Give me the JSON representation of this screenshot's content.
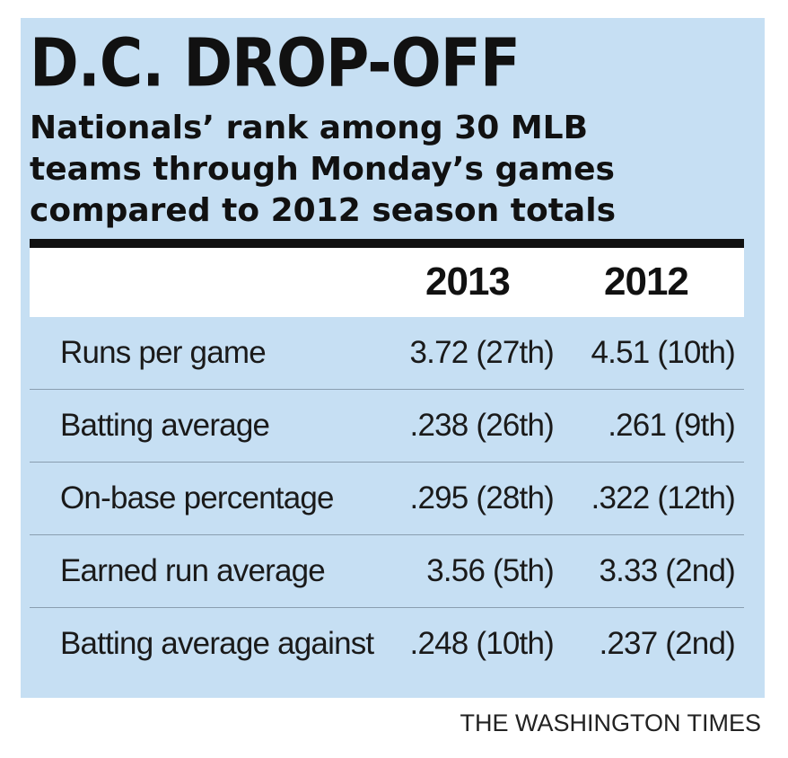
{
  "title": "D.C. DROP-OFF",
  "subtitle_lines": [
    "Nationals’ rank among 30 MLB",
    "teams through Monday’s games",
    "compared to 2012 season totals"
  ],
  "credit": "THE WASHINGTON TIMES",
  "colors": {
    "panel_background": "#c6dff3",
    "header_background": "#ffffff",
    "text": "#111111",
    "rule": "#111111"
  },
  "chart_data": {
    "type": "table",
    "title": "D.C. DROP-OFF",
    "subtitle": "Nationals’ rank among 30 MLB teams through Monday’s games compared to 2012 season totals",
    "columns": [
      "",
      "2013",
      "2012"
    ],
    "rows": [
      {
        "label": "Runs per game",
        "values": [
          "3.72 (27th)",
          "4.51 (10th)"
        ]
      },
      {
        "label": "Batting average",
        "values": [
          ".238 (26th)",
          ".261 (9th)"
        ]
      },
      {
        "label": "On-base percentage",
        "values": [
          ".295 (28th)",
          ".322 (12th)"
        ]
      },
      {
        "label": "Earned run average",
        "values": [
          "3.56 (5th)",
          "3.33 (2nd)"
        ]
      },
      {
        "label": "Batting average against",
        "values": [
          ".248 (10th)",
          ".237 (2nd)"
        ]
      }
    ]
  }
}
